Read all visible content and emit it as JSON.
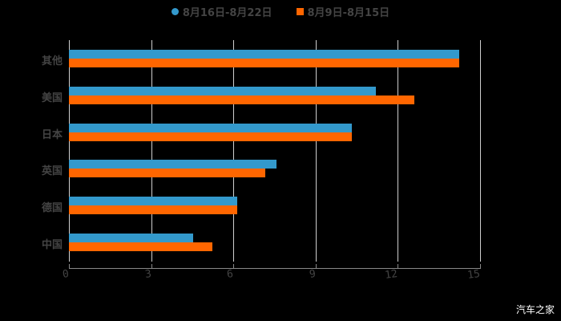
{
  "chart_data": {
    "type": "bar",
    "orientation": "horizontal",
    "title": "",
    "xlabel": "",
    "ylabel": "",
    "categories": [
      "其他",
      "美国",
      "日本",
      "英国",
      "德国",
      "中国"
    ],
    "series": [
      {
        "name": "8月16日-8月22日",
        "color": "#3399cc",
        "values": [
          14.24,
          11.2,
          10.32,
          7.57,
          6.14,
          4.53
        ]
      },
      {
        "name": "8月9日-8月15日",
        "color": "#ff6600",
        "values": [
          14.24,
          12.6,
          10.32,
          7.16,
          6.14,
          5.23
        ]
      }
    ],
    "xlim": [
      0,
      15
    ],
    "xticks": [
      "0",
      "3",
      "6",
      "9",
      "12",
      "15"
    ],
    "grid": "vertical",
    "legend_position": "top"
  },
  "legend": {
    "series1": "8月16日-8月22日",
    "series2": "8月9日-8月15日"
  },
  "watermark": "汽车之家"
}
